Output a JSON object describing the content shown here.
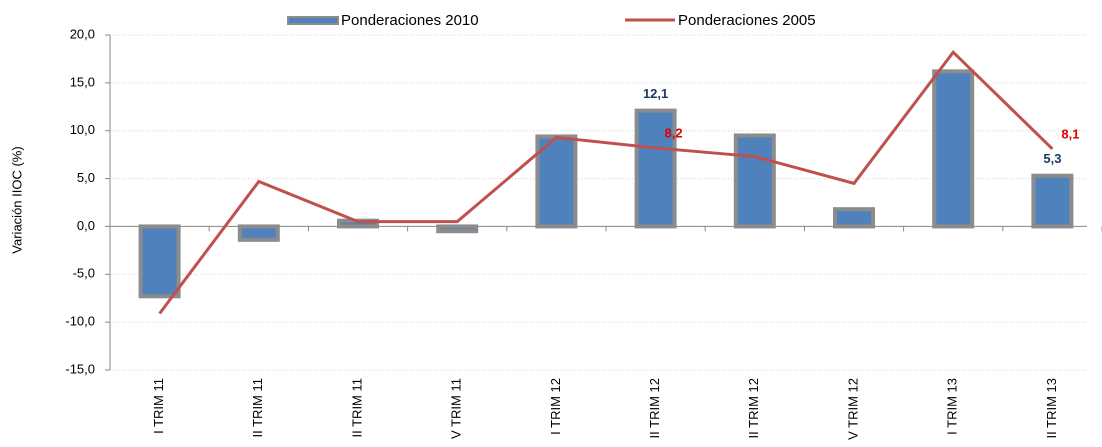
{
  "chart_data": {
    "type": "bar",
    "y_label": "Variación IIOC (%)",
    "categories": [
      "I TRIM 11",
      "II TRIM 11",
      "II TRIM 11",
      "V TRIM 11",
      "I TRIM 12",
      "II TRIM 12",
      "II TRIM 12",
      "V TRIM 12",
      "I TRIM 13",
      "II TRIM 13"
    ],
    "series": [
      {
        "name": "Ponderaciones 2010",
        "type": "bar",
        "color": "#4f81bd",
        "label_color": "#1f3864",
        "values": [
          -7.3,
          -1.4,
          0.6,
          -0.5,
          9.4,
          12.1,
          9.5,
          1.8,
          16.2,
          5.3
        ],
        "value_labels": [
          null,
          null,
          null,
          null,
          null,
          "12,1",
          null,
          null,
          null,
          "5,3"
        ]
      },
      {
        "name": "Ponderaciones 2005",
        "type": "line",
        "color": "#c0504d",
        "label_color": "#e00000",
        "values": [
          -9.1,
          4.7,
          0.5,
          0.5,
          9.3,
          8.2,
          7.3,
          4.5,
          18.2,
          8.1
        ],
        "value_labels": [
          null,
          null,
          null,
          null,
          null,
          "8,2",
          null,
          null,
          null,
          "8,1"
        ]
      }
    ],
    "ylim": [
      -15,
      20
    ],
    "yticks": [
      {
        "value": -15,
        "label": "-15,0"
      },
      {
        "value": -10,
        "label": "-10,0"
      },
      {
        "value": -5,
        "label": "-5,0"
      },
      {
        "value": 0,
        "label": "0,0"
      },
      {
        "value": 5,
        "label": "5,0"
      },
      {
        "value": 10,
        "label": "10,0"
      },
      {
        "value": 15,
        "label": "15,0"
      },
      {
        "value": 20,
        "label": "20,0"
      }
    ],
    "grid": true,
    "legend": "top"
  }
}
